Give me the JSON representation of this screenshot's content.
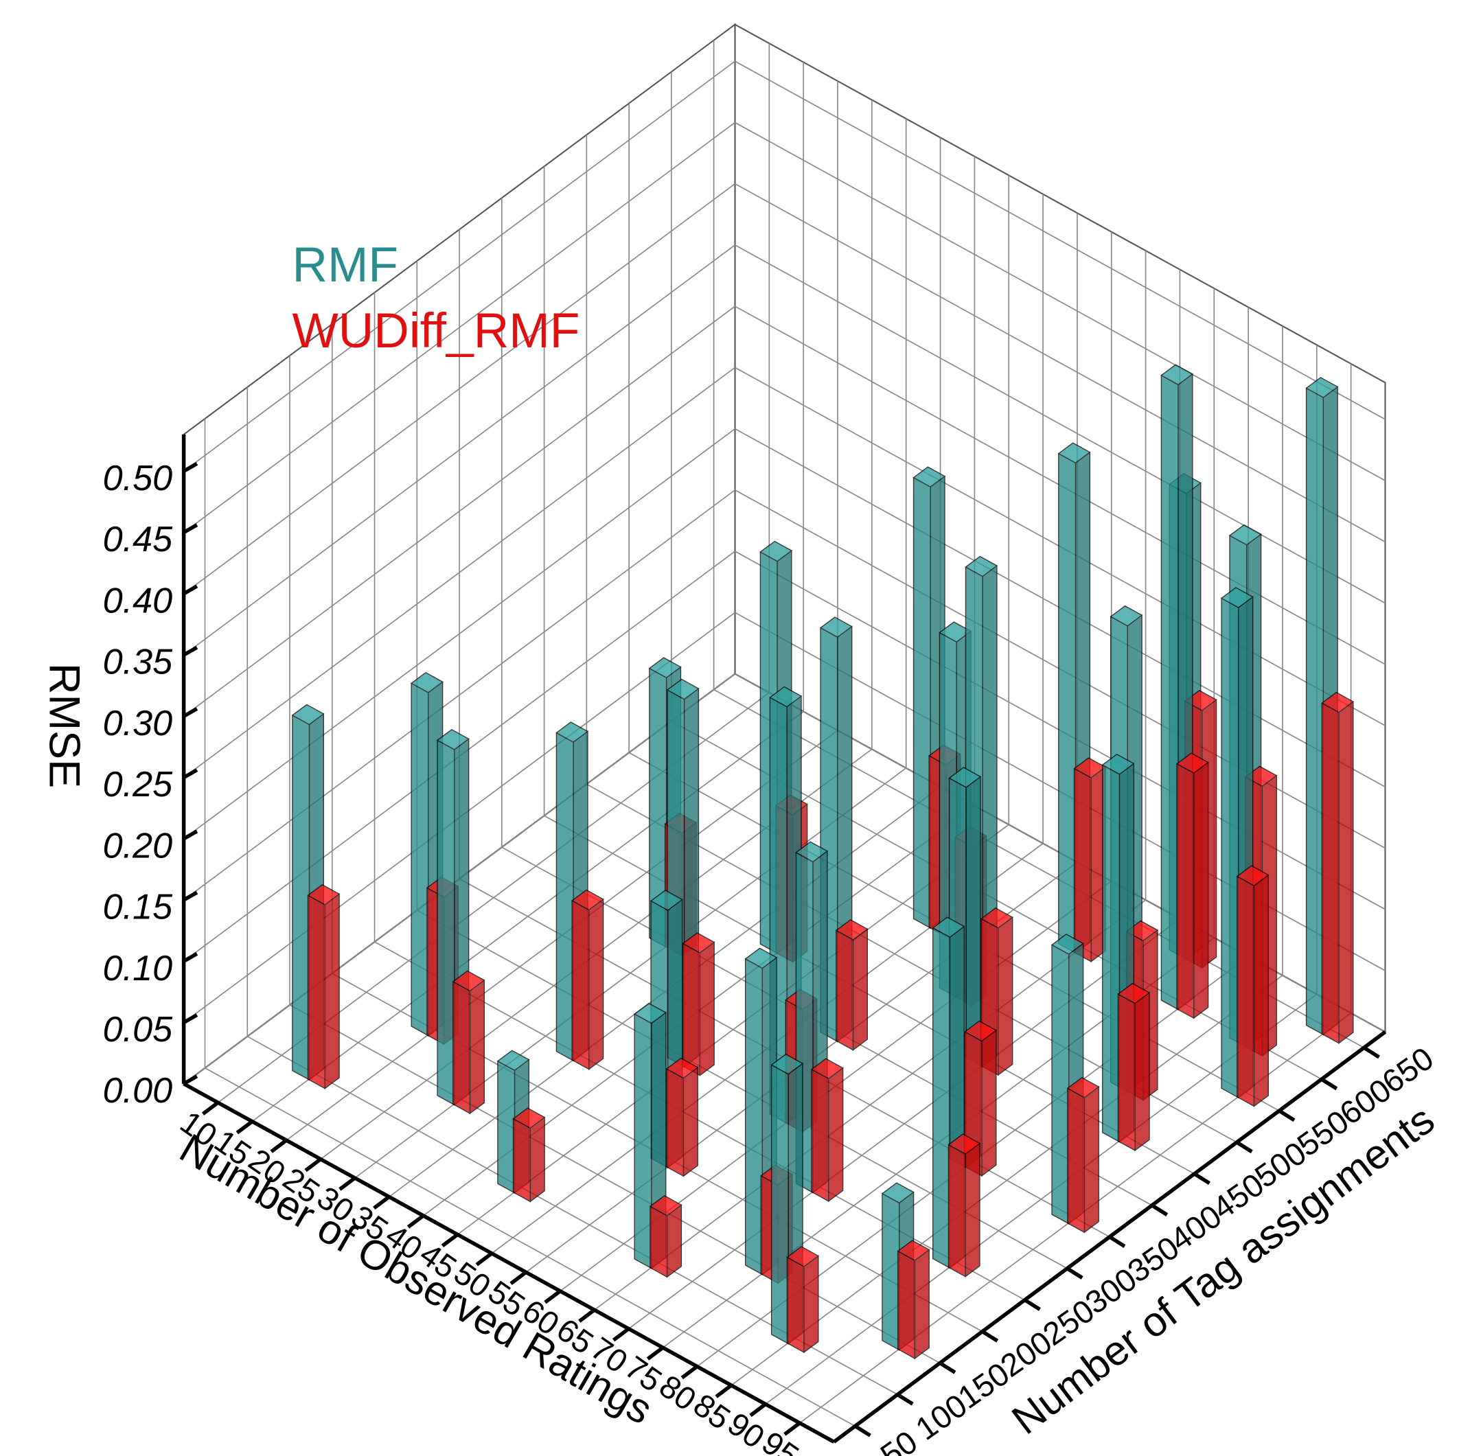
{
  "chart_data": {
    "type": "bar3d",
    "x_label": "Number of Observed Ratings",
    "y_label": "Number of Tag assignments",
    "z_label": "RMSE",
    "x": [
      15,
      20,
      30,
      35,
      45,
      45,
      55,
      55,
      60,
      65,
      70,
      70,
      75,
      80,
      85,
      85,
      90,
      90,
      95,
      95,
      40,
      50,
      65,
      80,
      90,
      95,
      75,
      95,
      60,
      30
    ],
    "y": [
      100,
      200,
      150,
      250,
      100,
      300,
      200,
      400,
      300,
      100,
      250,
      450,
      150,
      350,
      100,
      500,
      250,
      450,
      150,
      350,
      450,
      550,
      600,
      600,
      600,
      550,
      650,
      650,
      500,
      400
    ],
    "series": [
      {
        "name": "RMF",
        "color": "#2a8c8c",
        "values": [
          0.29,
          0.28,
          0.29,
          0.26,
          0.1,
          0.3,
          0.21,
          0.33,
          0.34,
          0.2,
          0.27,
          0.4,
          0.25,
          0.31,
          0.22,
          0.38,
          0.27,
          0.3,
          0.12,
          0.22,
          0.32,
          0.36,
          0.4,
          0.51,
          0.41,
          0.4,
          0.38,
          0.52,
          0.29,
          0.22
        ]
      },
      {
        "name": "WUDiff_RMF",
        "color": "#e01010",
        "values": [
          0.15,
          0.12,
          0.1,
          0.13,
          0.06,
          0.1,
          0.08,
          0.09,
          0.1,
          0.05,
          0.1,
          0.12,
          0.08,
          0.11,
          0.07,
          0.13,
          0.1,
          0.12,
          0.08,
          0.11,
          0.12,
          0.14,
          0.15,
          0.2,
          0.22,
          0.18,
          0.21,
          0.27,
          0.13,
          0.1
        ]
      }
    ],
    "xlim": [
      5,
      100
    ],
    "xticks": [
      10,
      15,
      20,
      25,
      30,
      35,
      40,
      45,
      50,
      55,
      60,
      65,
      70,
      75,
      80,
      85,
      90,
      95
    ],
    "ylim": [
      25,
      675
    ],
    "yticks": [
      50,
      100,
      150,
      200,
      250,
      300,
      350,
      400,
      450,
      500,
      550,
      600,
      650
    ],
    "zlim": [
      0,
      0.53
    ],
    "zticks": [
      {
        "value": 0,
        "label": "0.00"
      },
      0.05,
      {
        "value": 0.1,
        "label": "0.10"
      },
      0.15,
      {
        "value": 0.2,
        "label": "0.20"
      },
      0.25,
      {
        "value": 0.3,
        "label": "0.30"
      },
      0.35,
      {
        "value": 0.4,
        "label": "0.40"
      },
      0.45,
      {
        "value": 0.5,
        "label": "0.50"
      }
    ],
    "grid": true,
    "legend": "upper left"
  }
}
